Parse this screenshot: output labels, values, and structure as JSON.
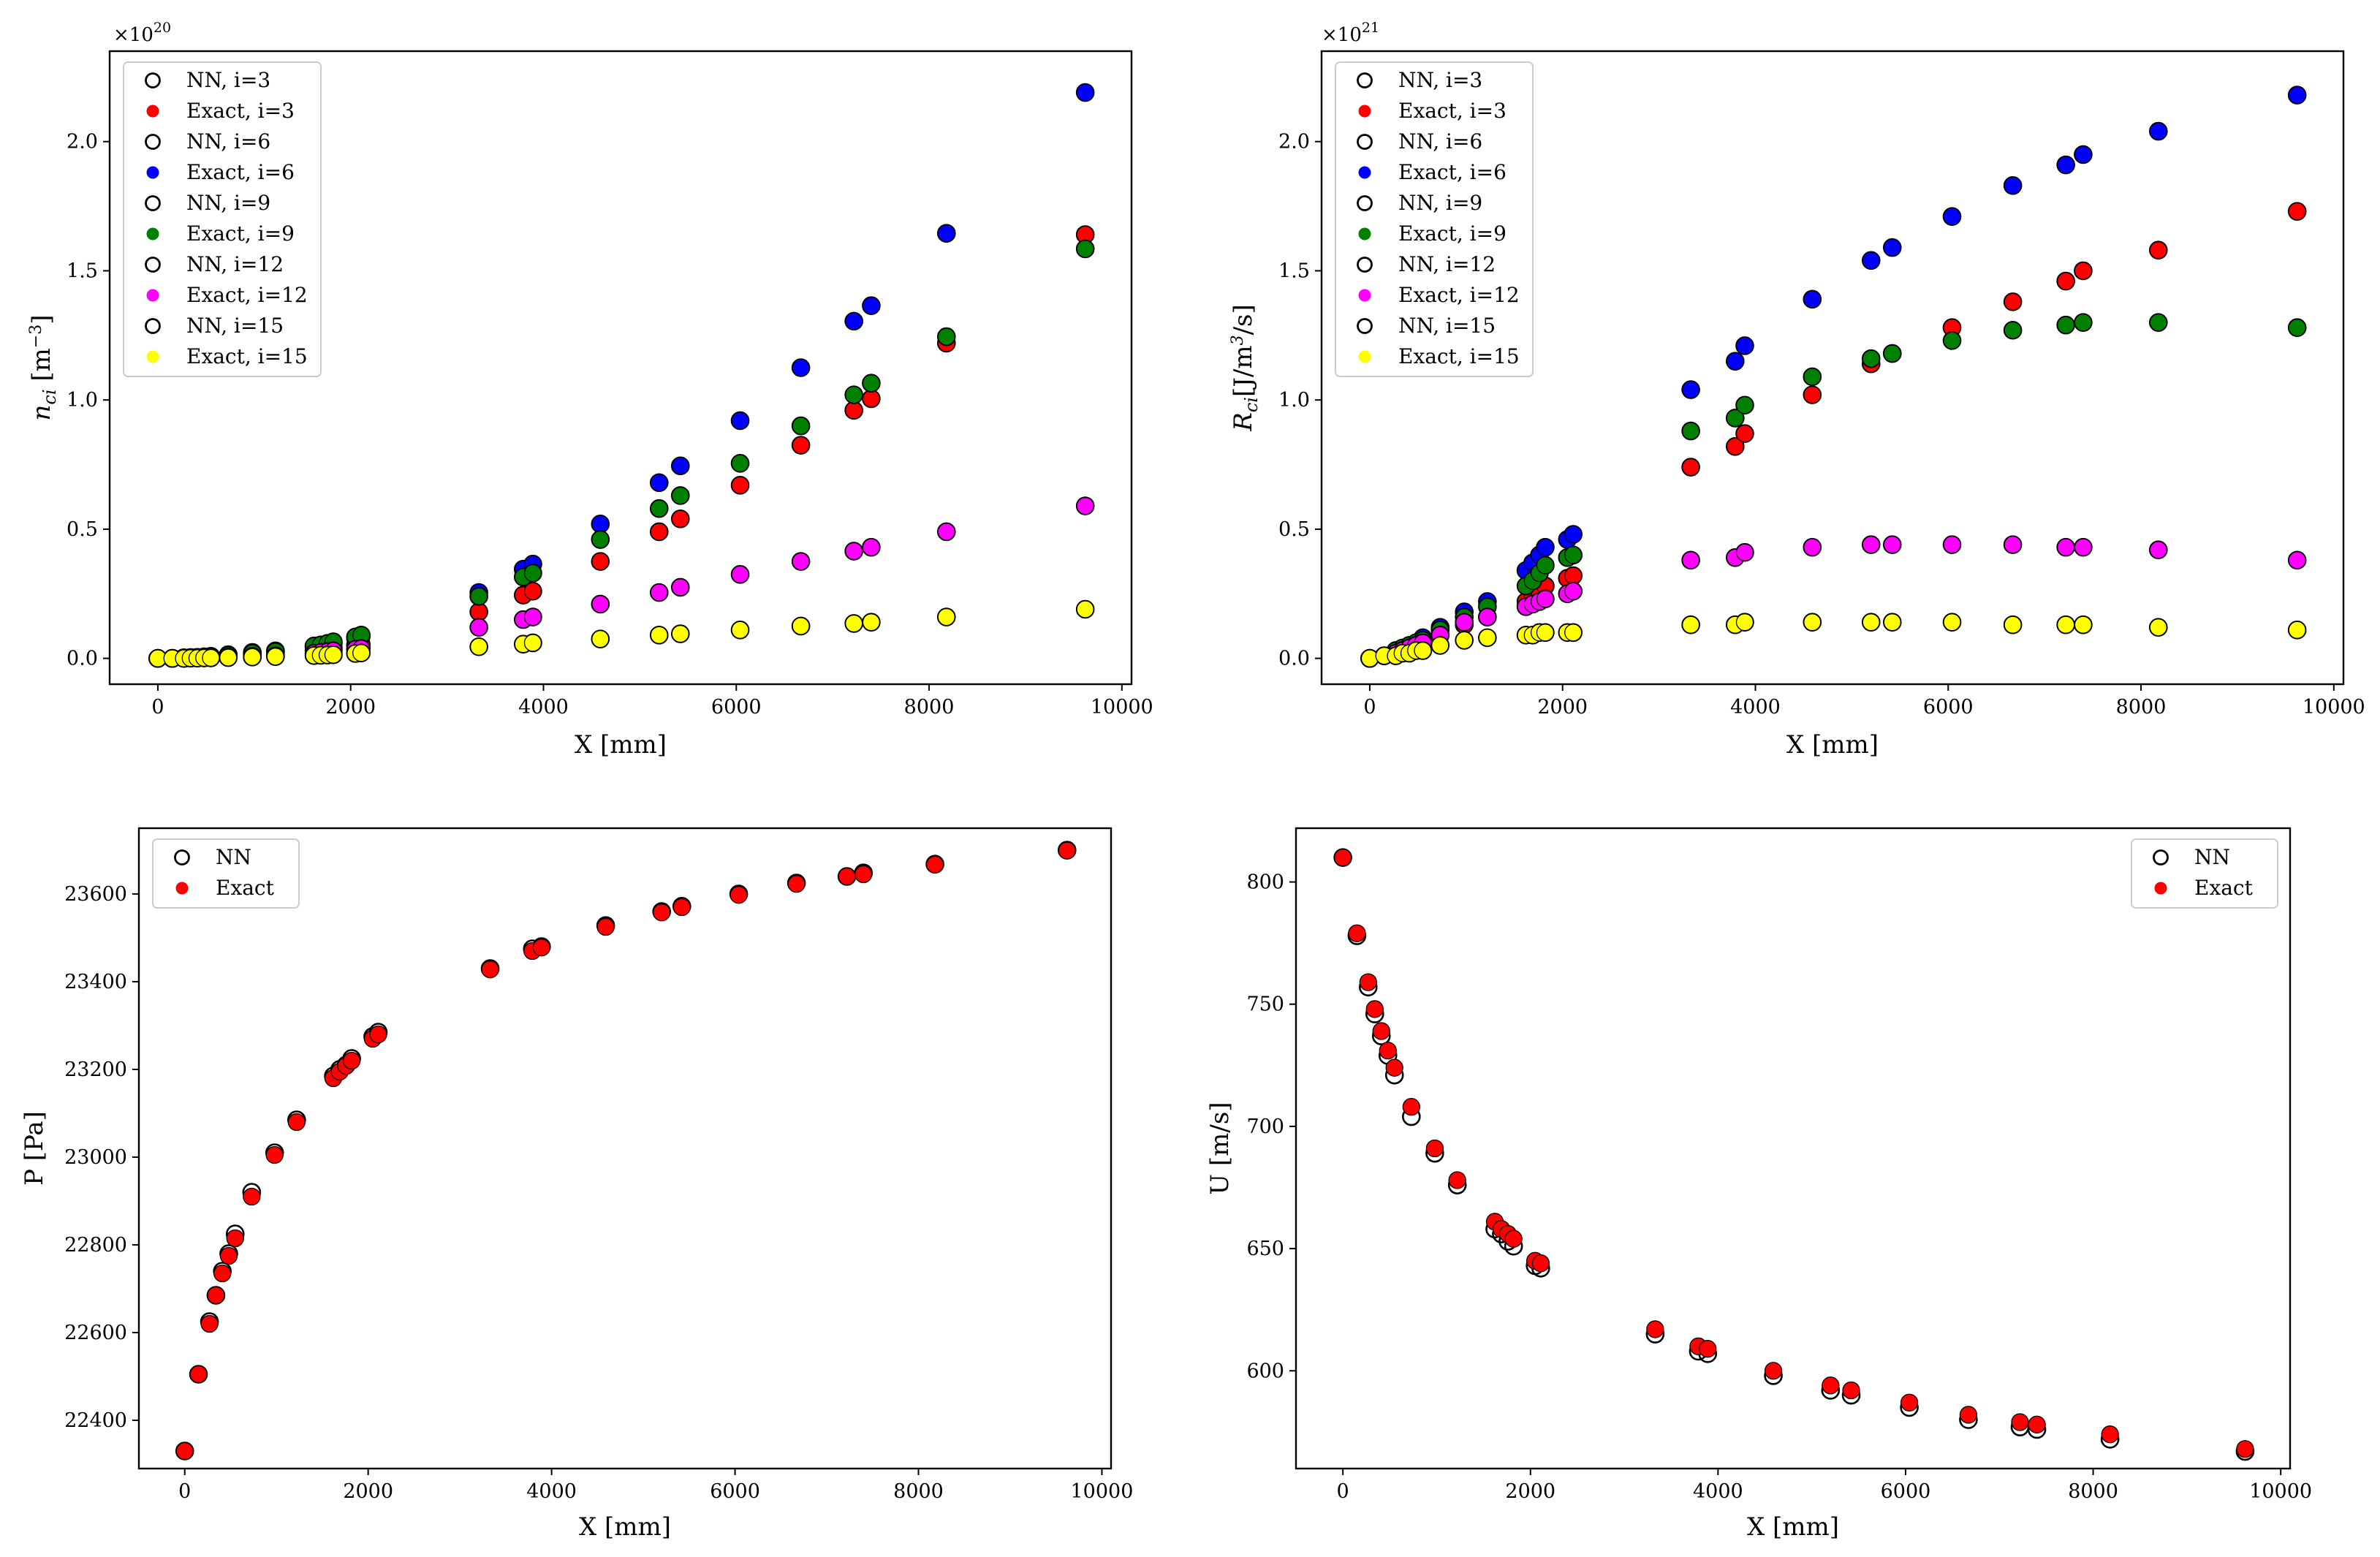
{
  "figure": {
    "background": "#ffffff",
    "colors": {
      "i3": "#ff0000",
      "i6": "#0000ff",
      "i9": "#008000",
      "i12": "#ff00ff",
      "i15": "#ffff00",
      "nn_edge": "#000000",
      "exact": "#ff0000"
    }
  },
  "chart_data": [
    {
      "id": "nci",
      "type": "scatter",
      "title": "",
      "xlabel": "X [mm]",
      "ylabel": "n_ci [m^-3]",
      "ylabel_parts": {
        "base": "n",
        "sub": "ci",
        "unit_open": " [m",
        "sup": "−3",
        "unit_close": "]"
      },
      "y_scale_label": "×10",
      "y_scale_exp": "20",
      "xlim": [
        -500,
        10100
      ],
      "ylim": [
        -0.1,
        2.35
      ],
      "xticks": [
        0,
        2000,
        4000,
        6000,
        8000,
        10000
      ],
      "yticks": [
        0.0,
        0.5,
        1.0,
        1.5,
        2.0
      ],
      "legend_position": "upper-left",
      "x": [
        0,
        150,
        270,
        340,
        410,
        480,
        550,
        730,
        980,
        1220,
        1620,
        1690,
        1760,
        1820,
        2050,
        2110,
        3330,
        3790,
        3890,
        4590,
        5200,
        5420,
        6040,
        6670,
        7220,
        7400,
        8180,
        9620
      ],
      "series": [
        {
          "name": "NN, i=3",
          "kind": "nn",
          "i": 3,
          "values": [
            0.0,
            0.0,
            0.001,
            0.002,
            0.003,
            0.004,
            0.006,
            0.01,
            0.016,
            0.02,
            0.031,
            0.034,
            0.037,
            0.04,
            0.05,
            0.054,
            0.18,
            0.245,
            0.26,
            0.375,
            0.49,
            0.54,
            0.67,
            0.825,
            0.96,
            1.005,
            1.22,
            1.64
          ]
        },
        {
          "name": "Exact, i=3",
          "kind": "exact",
          "i": 3,
          "values": [
            0.0,
            0.0,
            0.001,
            0.002,
            0.003,
            0.004,
            0.006,
            0.01,
            0.016,
            0.02,
            0.031,
            0.034,
            0.037,
            0.04,
            0.05,
            0.054,
            0.18,
            0.245,
            0.26,
            0.375,
            0.49,
            0.54,
            0.67,
            0.825,
            0.96,
            1.005,
            1.22,
            1.64
          ]
        },
        {
          "name": "NN, i=6",
          "kind": "nn",
          "i": 6,
          "values": [
            0.0,
            0.0,
            0.002,
            0.003,
            0.004,
            0.006,
            0.008,
            0.014,
            0.023,
            0.029,
            0.046,
            0.05,
            0.055,
            0.06,
            0.078,
            0.085,
            0.255,
            0.345,
            0.365,
            0.52,
            0.68,
            0.745,
            0.92,
            1.125,
            1.305,
            1.365,
            1.645,
            2.19
          ]
        },
        {
          "name": "Exact, i=6",
          "kind": "exact",
          "i": 6,
          "values": [
            0.0,
            0.0,
            0.002,
            0.003,
            0.004,
            0.006,
            0.008,
            0.014,
            0.023,
            0.029,
            0.046,
            0.05,
            0.055,
            0.06,
            0.078,
            0.085,
            0.255,
            0.345,
            0.365,
            0.52,
            0.68,
            0.745,
            0.92,
            1.125,
            1.305,
            1.365,
            1.645,
            2.19
          ]
        },
        {
          "name": "NN, i=9",
          "kind": "nn",
          "i": 9,
          "values": [
            0.0,
            0.0,
            0.002,
            0.003,
            0.004,
            0.005,
            0.007,
            0.012,
            0.02,
            0.026,
            0.048,
            0.052,
            0.058,
            0.064,
            0.083,
            0.09,
            0.24,
            0.315,
            0.33,
            0.46,
            0.58,
            0.63,
            0.755,
            0.9,
            1.02,
            1.065,
            1.245,
            1.585
          ]
        },
        {
          "name": "Exact, i=9",
          "kind": "exact",
          "i": 9,
          "values": [
            0.0,
            0.0,
            0.002,
            0.003,
            0.004,
            0.005,
            0.007,
            0.012,
            0.02,
            0.026,
            0.048,
            0.052,
            0.058,
            0.064,
            0.083,
            0.09,
            0.24,
            0.315,
            0.33,
            0.46,
            0.58,
            0.63,
            0.755,
            0.9,
            1.02,
            1.065,
            1.245,
            1.585
          ]
        },
        {
          "name": "NN, i=12",
          "kind": "nn",
          "i": 12,
          "values": [
            0.0,
            0.0,
            0.001,
            0.001,
            0.002,
            0.002,
            0.003,
            0.005,
            0.008,
            0.01,
            0.02,
            0.023,
            0.026,
            0.029,
            0.035,
            0.038,
            0.12,
            0.15,
            0.16,
            0.21,
            0.255,
            0.275,
            0.325,
            0.375,
            0.415,
            0.43,
            0.49,
            0.59
          ]
        },
        {
          "name": "Exact, i=12",
          "kind": "exact",
          "i": 12,
          "values": [
            0.0,
            0.0,
            0.001,
            0.001,
            0.002,
            0.002,
            0.003,
            0.005,
            0.008,
            0.01,
            0.02,
            0.023,
            0.026,
            0.029,
            0.035,
            0.038,
            0.12,
            0.15,
            0.16,
            0.21,
            0.255,
            0.275,
            0.325,
            0.375,
            0.415,
            0.43,
            0.49,
            0.59
          ]
        },
        {
          "name": "NN, i=15",
          "kind": "nn",
          "i": 15,
          "values": [
            0.0,
            0.0,
            0.0,
            0.001,
            0.001,
            0.002,
            0.002,
            0.003,
            0.005,
            0.007,
            0.011,
            0.012,
            0.013,
            0.014,
            0.019,
            0.021,
            0.045,
            0.055,
            0.06,
            0.075,
            0.09,
            0.095,
            0.11,
            0.125,
            0.135,
            0.14,
            0.16,
            0.19
          ]
        },
        {
          "name": "Exact, i=15",
          "kind": "exact",
          "i": 15,
          "values": [
            0.0,
            0.0,
            0.0,
            0.001,
            0.001,
            0.002,
            0.002,
            0.003,
            0.005,
            0.007,
            0.011,
            0.012,
            0.013,
            0.014,
            0.019,
            0.021,
            0.045,
            0.055,
            0.06,
            0.075,
            0.09,
            0.095,
            0.11,
            0.125,
            0.135,
            0.14,
            0.16,
            0.19
          ]
        }
      ]
    },
    {
      "id": "rci",
      "type": "scatter",
      "title": "",
      "xlabel": "X [mm]",
      "ylabel": "R_ci [J/m^3/s]",
      "ylabel_parts": {
        "base": "R",
        "sub": "ci",
        "unit_open": "[J/m",
        "sup": "3",
        "unit_close": "/s]"
      },
      "y_scale_label": "×10",
      "y_scale_exp": "21",
      "xlim": [
        -500,
        10100
      ],
      "ylim": [
        -0.1,
        2.35
      ],
      "xticks": [
        0,
        2000,
        4000,
        6000,
        8000,
        10000
      ],
      "yticks": [
        0.0,
        0.5,
        1.0,
        1.5,
        2.0
      ],
      "legend_position": "upper-left",
      "x": [
        0,
        150,
        270,
        340,
        410,
        480,
        550,
        730,
        980,
        1220,
        1620,
        1690,
        1760,
        1820,
        2050,
        2110,
        3330,
        3790,
        3890,
        4590,
        5200,
        5420,
        6040,
        6670,
        7220,
        7400,
        8180,
        9620
      ],
      "series": [
        {
          "name": "NN, i=3",
          "kind": "nn",
          "i": 3,
          "values": [
            0.0,
            0.01,
            0.02,
            0.03,
            0.04,
            0.05,
            0.06,
            0.09,
            0.13,
            0.16,
            0.22,
            0.24,
            0.26,
            0.28,
            0.31,
            0.32,
            0.74,
            0.82,
            0.87,
            1.02,
            1.14,
            1.18,
            1.28,
            1.38,
            1.46,
            1.5,
            1.58,
            1.73
          ]
        },
        {
          "name": "Exact, i=3",
          "kind": "exact",
          "i": 3,
          "values": [
            0.0,
            0.01,
            0.02,
            0.03,
            0.04,
            0.05,
            0.06,
            0.09,
            0.13,
            0.16,
            0.22,
            0.24,
            0.26,
            0.28,
            0.31,
            0.32,
            0.74,
            0.82,
            0.87,
            1.02,
            1.14,
            1.18,
            1.28,
            1.38,
            1.46,
            1.5,
            1.58,
            1.73
          ]
        },
        {
          "name": "NN, i=6",
          "kind": "nn",
          "i": 6,
          "values": [
            0.0,
            0.01,
            0.03,
            0.04,
            0.05,
            0.06,
            0.08,
            0.12,
            0.18,
            0.22,
            0.34,
            0.37,
            0.4,
            0.43,
            0.46,
            0.48,
            1.04,
            1.15,
            1.21,
            1.39,
            1.54,
            1.59,
            1.71,
            1.83,
            1.91,
            1.95,
            2.04,
            2.18
          ]
        },
        {
          "name": "Exact, i=6",
          "kind": "exact",
          "i": 6,
          "values": [
            0.0,
            0.01,
            0.03,
            0.04,
            0.05,
            0.06,
            0.08,
            0.12,
            0.18,
            0.22,
            0.34,
            0.37,
            0.4,
            0.43,
            0.46,
            0.48,
            1.04,
            1.15,
            1.21,
            1.39,
            1.54,
            1.59,
            1.71,
            1.83,
            1.91,
            1.95,
            2.04,
            2.18
          ]
        },
        {
          "name": "NN, i=9",
          "kind": "nn",
          "i": 9,
          "values": [
            0.0,
            0.01,
            0.03,
            0.04,
            0.05,
            0.06,
            0.07,
            0.11,
            0.16,
            0.2,
            0.28,
            0.3,
            0.33,
            0.36,
            0.39,
            0.4,
            0.88,
            0.93,
            0.98,
            1.09,
            1.16,
            1.18,
            1.23,
            1.27,
            1.29,
            1.3,
            1.3,
            1.28
          ]
        },
        {
          "name": "Exact, i=9",
          "kind": "exact",
          "i": 9,
          "values": [
            0.0,
            0.01,
            0.03,
            0.04,
            0.05,
            0.06,
            0.07,
            0.11,
            0.16,
            0.2,
            0.28,
            0.3,
            0.33,
            0.36,
            0.39,
            0.4,
            0.88,
            0.93,
            0.98,
            1.09,
            1.16,
            1.18,
            1.23,
            1.27,
            1.29,
            1.3,
            1.3,
            1.28
          ]
        },
        {
          "name": "NN, i=12",
          "kind": "nn",
          "i": 12,
          "values": [
            0.0,
            0.01,
            0.02,
            0.03,
            0.04,
            0.05,
            0.06,
            0.09,
            0.14,
            0.16,
            0.2,
            0.21,
            0.22,
            0.23,
            0.25,
            0.26,
            0.38,
            0.39,
            0.41,
            0.43,
            0.44,
            0.44,
            0.44,
            0.44,
            0.43,
            0.43,
            0.42,
            0.38
          ]
        },
        {
          "name": "Exact, i=12",
          "kind": "exact",
          "i": 12,
          "values": [
            0.0,
            0.01,
            0.02,
            0.03,
            0.04,
            0.05,
            0.06,
            0.09,
            0.14,
            0.16,
            0.2,
            0.21,
            0.22,
            0.23,
            0.25,
            0.26,
            0.38,
            0.39,
            0.41,
            0.43,
            0.44,
            0.44,
            0.44,
            0.44,
            0.43,
            0.43,
            0.42,
            0.38
          ]
        },
        {
          "name": "NN, i=15",
          "kind": "nn",
          "i": 15,
          "values": [
            0.0,
            0.01,
            0.01,
            0.02,
            0.02,
            0.03,
            0.03,
            0.05,
            0.07,
            0.08,
            0.09,
            0.09,
            0.1,
            0.1,
            0.1,
            0.1,
            0.13,
            0.13,
            0.14,
            0.14,
            0.14,
            0.14,
            0.14,
            0.13,
            0.13,
            0.13,
            0.12,
            0.11
          ]
        },
        {
          "name": "Exact, i=15",
          "kind": "exact",
          "i": 15,
          "values": [
            0.0,
            0.01,
            0.01,
            0.02,
            0.02,
            0.03,
            0.03,
            0.05,
            0.07,
            0.08,
            0.09,
            0.09,
            0.1,
            0.1,
            0.1,
            0.1,
            0.13,
            0.13,
            0.14,
            0.14,
            0.14,
            0.14,
            0.14,
            0.13,
            0.13,
            0.13,
            0.12,
            0.11
          ]
        }
      ]
    },
    {
      "id": "pressure",
      "type": "scatter",
      "title": "",
      "xlabel": "X [mm]",
      "ylabel": "P [Pa]",
      "xlim": [
        -500,
        10100
      ],
      "ylim": [
        22290,
        23750
      ],
      "xticks": [
        0,
        2000,
        4000,
        6000,
        8000,
        10000
      ],
      "yticks": [
        22400,
        22600,
        22800,
        23000,
        23200,
        23400,
        23600
      ],
      "legend_position": "upper-left",
      "x": [
        0,
        150,
        270,
        340,
        410,
        480,
        550,
        730,
        980,
        1220,
        1620,
        1690,
        1760,
        1820,
        2050,
        2110,
        3330,
        3790,
        3890,
        4590,
        5200,
        5420,
        6040,
        6670,
        7220,
        7400,
        8180,
        9620
      ],
      "series": [
        {
          "name": "NN",
          "kind": "nn",
          "values": [
            22330,
            22505,
            22625,
            22685,
            22740,
            22780,
            22825,
            22920,
            23010,
            23085,
            23185,
            23200,
            23210,
            23225,
            23275,
            23285,
            23430,
            23475,
            23480,
            23528,
            23560,
            23572,
            23600,
            23625,
            23640,
            23648,
            23668,
            23700
          ]
        },
        {
          "name": "Exact",
          "kind": "exact",
          "values": [
            22330,
            22505,
            22620,
            22685,
            22735,
            22775,
            22815,
            22910,
            23005,
            23080,
            23180,
            23195,
            23208,
            23220,
            23270,
            23280,
            23428,
            23470,
            23478,
            23525,
            23558,
            23570,
            23598,
            23623,
            23640,
            23645,
            23667,
            23699
          ]
        }
      ]
    },
    {
      "id": "velocity",
      "type": "scatter",
      "title": "",
      "xlabel": "X [mm]",
      "ylabel": "U [m/s]",
      "xlim": [
        -500,
        10100
      ],
      "ylim": [
        560,
        822
      ],
      "xticks": [
        0,
        2000,
        4000,
        6000,
        8000,
        10000
      ],
      "yticks": [
        600,
        650,
        700,
        750,
        800
      ],
      "legend_position": "upper-right",
      "x": [
        0,
        150,
        270,
        340,
        410,
        480,
        550,
        730,
        980,
        1220,
        1620,
        1690,
        1760,
        1820,
        2050,
        2110,
        3330,
        3790,
        3890,
        4590,
        5200,
        5420,
        6040,
        6670,
        7220,
        7400,
        8180,
        9620
      ],
      "series": [
        {
          "name": "NN",
          "kind": "nn",
          "values": [
            810,
            778,
            757,
            746,
            737,
            729,
            721,
            704,
            689,
            676,
            658,
            656,
            653,
            651,
            643,
            642,
            615,
            608,
            607,
            598,
            592,
            590,
            585,
            580,
            577,
            576,
            572,
            567
          ]
        },
        {
          "name": "Exact",
          "kind": "exact",
          "values": [
            810,
            779,
            759,
            748,
            739,
            731,
            724,
            708,
            691,
            678,
            661,
            658,
            656,
            654,
            645,
            644,
            617,
            610,
            609,
            600,
            594,
            592,
            587,
            582,
            579,
            578,
            574,
            568
          ]
        }
      ]
    }
  ]
}
